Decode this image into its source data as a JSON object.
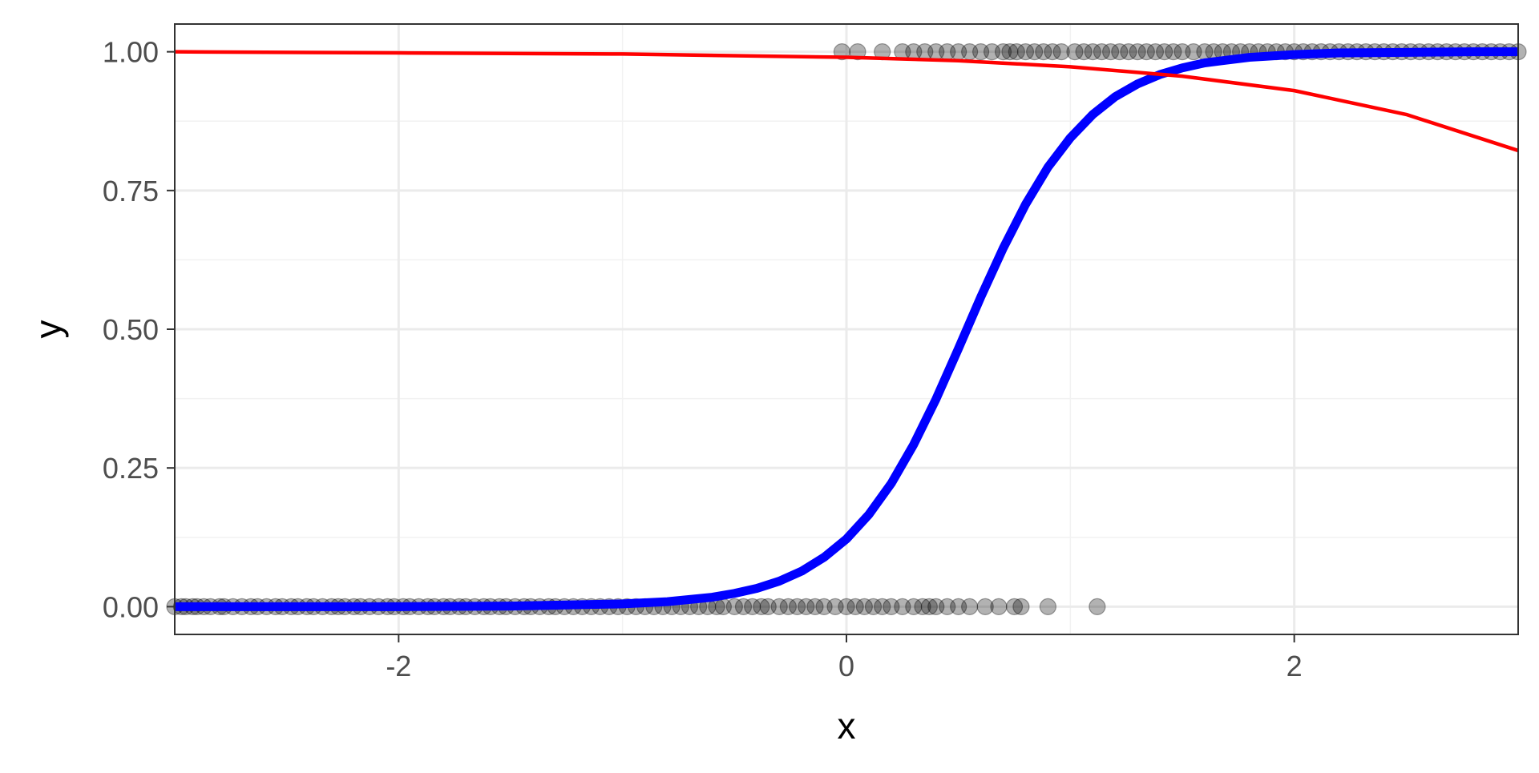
{
  "chart_data": {
    "type": "scatter",
    "title": "",
    "xlabel": "x",
    "ylabel": "y",
    "xlim": [
      -3.0,
      3.0
    ],
    "ylim": [
      -0.05,
      1.05
    ],
    "grid": true,
    "legend": "none",
    "x_ticks": [
      -2,
      0,
      2
    ],
    "x_tick_labels": [
      "-2",
      "0",
      "2"
    ],
    "x_minor_ticks": [
      -3,
      -1,
      1,
      3
    ],
    "y_ticks": [
      0,
      0.25,
      0.5,
      0.75,
      1.0
    ],
    "y_tick_labels": [
      "0.00",
      "0.25",
      "0.50",
      "0.75",
      "1.00"
    ],
    "y_minor_ticks": [
      0.125,
      0.375,
      0.625,
      0.875
    ],
    "colors": {
      "points": "#000000",
      "logistic_fit": "#0000ff",
      "linear_fit": "#ff0000",
      "panel_border": "#333333",
      "grid_major": "#ebebeb",
      "grid_minor": "#f2f2f2"
    },
    "series": [
      {
        "mark": "points",
        "y": 0,
        "x": [
          -3.0,
          -2.97,
          -2.95,
          -2.92,
          -2.9,
          -2.87,
          -2.84,
          -2.8,
          -2.78,
          -2.74,
          -2.7,
          -2.66,
          -2.63,
          -2.59,
          -2.55,
          -2.52,
          -2.48,
          -2.45,
          -2.41,
          -2.38,
          -2.34,
          -2.3,
          -2.27,
          -2.24,
          -2.2,
          -2.17,
          -2.13,
          -2.09,
          -2.05,
          -2.02,
          -1.98,
          -1.95,
          -1.91,
          -1.87,
          -1.84,
          -1.8,
          -1.77,
          -1.73,
          -1.7,
          -1.66,
          -1.62,
          -1.59,
          -1.55,
          -1.52,
          -1.48,
          -1.44,
          -1.41,
          -1.37,
          -1.33,
          -1.3,
          -1.26,
          -1.22,
          -1.18,
          -1.14,
          -1.1,
          -1.06,
          -1.02,
          -0.98,
          -0.94,
          -0.9,
          -0.86,
          -0.82,
          -0.78,
          -0.74,
          -0.7,
          -0.66,
          -0.62,
          -0.58,
          -0.55,
          -0.5,
          -0.46,
          -0.42,
          -0.38,
          -0.35,
          -0.3,
          -0.26,
          -0.22,
          -0.18,
          -0.14,
          -0.1,
          -0.05,
          0.0,
          0.04,
          0.08,
          0.12,
          0.16,
          0.2,
          0.25,
          0.3,
          0.34,
          0.37,
          0.4,
          0.45,
          0.5,
          0.55,
          0.62,
          0.68,
          0.75,
          0.78,
          0.9,
          1.12
        ]
      },
      {
        "mark": "points",
        "y": 1,
        "x": [
          -0.02,
          0.05,
          0.16,
          0.25,
          0.3,
          0.35,
          0.4,
          0.45,
          0.5,
          0.55,
          0.6,
          0.65,
          0.7,
          0.73,
          0.76,
          0.8,
          0.84,
          0.88,
          0.92,
          0.96,
          1.02,
          1.06,
          1.1,
          1.14,
          1.18,
          1.22,
          1.26,
          1.3,
          1.34,
          1.38,
          1.42,
          1.46,
          1.5,
          1.55,
          1.6,
          1.64,
          1.68,
          1.72,
          1.76,
          1.8,
          1.84,
          1.88,
          1.92,
          1.96,
          2.0,
          2.04,
          2.08,
          2.12,
          2.16,
          2.2,
          2.24,
          2.28,
          2.32,
          2.36,
          2.4,
          2.44,
          2.48,
          2.52,
          2.56,
          2.6,
          2.64,
          2.68,
          2.72,
          2.76,
          2.8,
          2.84,
          2.88,
          2.92,
          2.96,
          3.0
        ]
      },
      {
        "mark": "line",
        "x": [
          -3.0,
          -2.5,
          -2.0,
          -1.5,
          -1.0,
          -0.8,
          -0.6,
          -0.5,
          -0.4,
          -0.3,
          -0.2,
          -0.1,
          0.0,
          0.1,
          0.2,
          0.3,
          0.4,
          0.5,
          0.6,
          0.7,
          0.8,
          0.9,
          1.0,
          1.1,
          1.2,
          1.3,
          1.4,
          1.5,
          1.6,
          1.8,
          2.0,
          2.2,
          2.5,
          2.8,
          3.0
        ],
        "values": [
          0.0,
          0.0,
          0.0,
          0.001,
          0.005,
          0.009,
          0.017,
          0.024,
          0.033,
          0.046,
          0.064,
          0.089,
          0.122,
          0.166,
          0.222,
          0.292,
          0.374,
          0.465,
          0.558,
          0.646,
          0.725,
          0.792,
          0.845,
          0.887,
          0.919,
          0.942,
          0.959,
          0.971,
          0.98,
          0.99,
          0.995,
          0.998,
          0.999,
          1.0,
          1.0
        ]
      },
      {
        "mark": "line",
        "x": [
          -3.0,
          -2.0,
          -1.0,
          0.0,
          0.5,
          1.0,
          1.5,
          2.0,
          2.5,
          3.0
        ],
        "values": [
          1.0,
          0.998,
          0.996,
          0.99,
          0.984,
          0.973,
          0.956,
          0.93,
          0.887,
          0.822
        ]
      }
    ]
  }
}
